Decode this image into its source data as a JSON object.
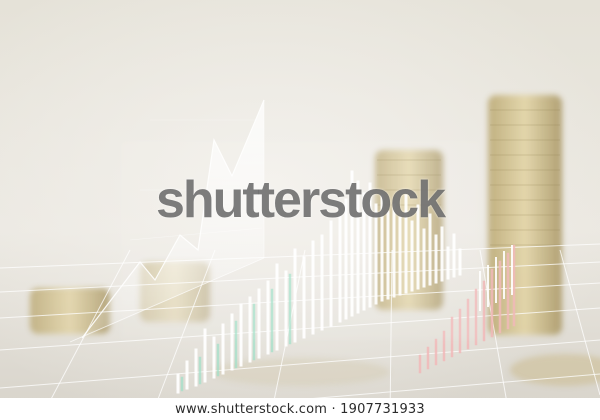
{
  "image": {
    "watermark": "shutterstock",
    "credit": "www.shutterstock.com · 1907731933"
  }
}
